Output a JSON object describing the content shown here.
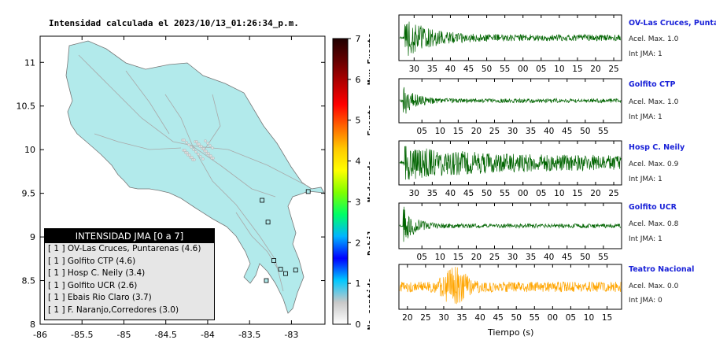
{
  "title": "Intensidad calculada el 2023/10/13_01:26:34_p.m.",
  "colorbar": {
    "ticks": [
      "0",
      "1",
      "2",
      "3",
      "4",
      "5",
      "6",
      "7"
    ],
    "levels": [
      "No sentido",
      "Debil",
      "Moderado",
      "Fuerte",
      "Muy Fuerte"
    ],
    "colors": [
      "#ffffff",
      "#c8c8c8",
      "#00c8ff",
      "#0000ff",
      "#00b4ff",
      "#00ff66",
      "#80ff00",
      "#ffff00",
      "#ffc800",
      "#ff6600",
      "#ff0000",
      "#b40000",
      "#640000",
      "#200000"
    ]
  },
  "map": {
    "x_ticks": [
      "-86",
      "-85.5",
      "-85",
      "-84.5",
      "-84",
      "-83.5",
      "-83"
    ],
    "y_ticks": [
      "8",
      "8.5",
      "9",
      "9.5",
      "10",
      "10.5",
      "11"
    ],
    "land_color": "#b2eaeb"
  },
  "legend": {
    "title": "INTENSIDAD JMA [0 a 7]",
    "items": [
      "[ 1 ]  OV-Las Cruces, Puntarenas (4.6)",
      "[ 1 ]  Golfito CTP (4.6)",
      "[ 1 ]  Hosp C. Neily (3.4)",
      "[ 1 ]  Golfito UCR (2.6)",
      "[ 1 ]  Ebais Rio Claro (3.7)",
      "[ 1 ]  F. Naranjo,Corredores (3.0)"
    ]
  },
  "chart_data": [
    {
      "type": "map",
      "xlim": [
        -86,
        -82.6
      ],
      "ylim": [
        8,
        11.3
      ],
      "stations": [
        {
          "lon": -82.8,
          "lat": 9.52
        },
        {
          "lon": -83.35,
          "lat": 9.42
        },
        {
          "lon": -83.28,
          "lat": 9.17
        },
        {
          "lon": -83.21,
          "lat": 8.73
        },
        {
          "lon": -83.13,
          "lat": 8.63
        },
        {
          "lon": -83.07,
          "lat": 8.58
        },
        {
          "lon": -82.95,
          "lat": 8.62
        },
        {
          "lon": -83.3,
          "lat": 8.5
        }
      ]
    },
    {
      "type": "waveforms",
      "xlabel": "Tiempo (s)",
      "traces": [
        {
          "name": "OV-Las Cruces, Puntar",
          "acel": "Acel. Max. 1.0",
          "jma": "Int JMA: 1",
          "color": "#006400",
          "ticks": [
            "30",
            "35",
            "40",
            "45",
            "50",
            "55",
            "00",
            "05",
            "10",
            "15",
            "20",
            "25"
          ],
          "first_tick_frac": 0.04,
          "envelope": "early"
        },
        {
          "name": "Golfito CTP",
          "acel": "Acel. Max. 1.0",
          "jma": "Int JMA: 1",
          "color": "#006400",
          "ticks": [
            "05",
            "10",
            "15",
            "20",
            "25",
            "30",
            "35",
            "40",
            "45",
            "50",
            "55"
          ],
          "first_tick_frac": 0.075,
          "envelope": "spike"
        },
        {
          "name": "Hosp C. Neily",
          "acel": "Acel. Max. 0.9",
          "jma": "Int JMA: 1",
          "color": "#006400",
          "ticks": [
            "30",
            "35",
            "40",
            "45",
            "50",
            "55",
            "00",
            "05",
            "10",
            "15",
            "20",
            "25"
          ],
          "first_tick_frac": 0.04,
          "envelope": "long"
        },
        {
          "name": "Golfito UCR",
          "acel": "Acel. Max. 0.8",
          "jma": "Int JMA: 1",
          "color": "#006400",
          "ticks": [
            "05",
            "10",
            "15",
            "20",
            "25",
            "30",
            "35",
            "40",
            "45",
            "50",
            "55"
          ],
          "first_tick_frac": 0.075,
          "envelope": "spike"
        },
        {
          "name": "Teatro Nacional",
          "acel": "Acel. Max. 0.0",
          "jma": "Int JMA: 0",
          "color": "#ffa500",
          "ticks": [
            "20",
            "25",
            "30",
            "35",
            "40",
            "45",
            "50",
            "55",
            "00",
            "05",
            "10",
            "15"
          ],
          "first_tick_frac": 0.01,
          "envelope": "mid"
        }
      ]
    }
  ]
}
